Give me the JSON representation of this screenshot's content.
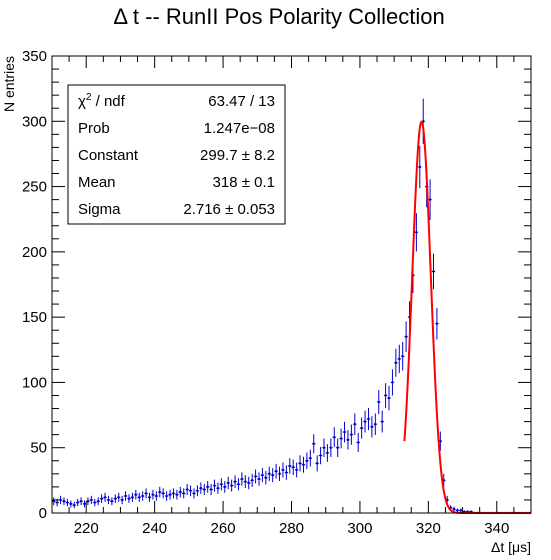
{
  "chart_data": {
    "type": "scatter",
    "title": "Δ t -- RunII Pos Polarity Collection",
    "xlabel": "Δt [μs]",
    "ylabel": "N entries",
    "xlim": [
      210,
      350
    ],
    "ylim": [
      0,
      350
    ],
    "x_ticks": [
      220,
      240,
      260,
      280,
      300,
      320,
      340
    ],
    "y_ticks": [
      0,
      50,
      100,
      150,
      200,
      250,
      300,
      350
    ],
    "grid": false,
    "marker_color": "#0000cc",
    "fit_color": "#ff0000",
    "bin_width": 1,
    "series": [
      {
        "type": "scatter",
        "x": [
          210.5,
          211.5,
          212.5,
          213.5,
          214.5,
          215.5,
          216.5,
          217.5,
          218.5,
          219.5,
          220.5,
          221.5,
          222.5,
          223.5,
          224.5,
          225.5,
          226.5,
          227.5,
          228.5,
          229.5,
          230.5,
          231.5,
          232.5,
          233.5,
          234.5,
          235.5,
          236.5,
          237.5,
          238.5,
          239.5,
          240.5,
          241.5,
          242.5,
          243.5,
          244.5,
          245.5,
          246.5,
          247.5,
          248.5,
          249.5,
          250.5,
          251.5,
          252.5,
          253.5,
          254.5,
          255.5,
          256.5,
          257.5,
          258.5,
          259.5,
          260.5,
          261.5,
          262.5,
          263.5,
          264.5,
          265.5,
          266.5,
          267.5,
          268.5,
          269.5,
          270.5,
          271.5,
          272.5,
          273.5,
          274.5,
          275.5,
          276.5,
          277.5,
          278.5,
          279.5,
          280.5,
          281.5,
          282.5,
          283.5,
          284.5,
          285.5,
          286.5,
          287.5,
          288.5,
          289.5,
          290.5,
          291.5,
          292.5,
          293.5,
          294.5,
          295.5,
          296.5,
          297.5,
          298.5,
          299.5,
          300.5,
          301.5,
          302.5,
          303.5,
          304.5,
          305.5,
          306.5,
          307.5,
          308.5,
          309.5,
          310.5,
          311.5,
          312.5,
          313.5,
          314.5,
          315.5,
          316.5,
          317.5,
          318.5,
          319.5,
          320.5,
          321.5,
          322.5,
          323.5,
          324.5,
          325.5,
          326.5,
          327.5,
          328.5,
          329.5,
          330.5,
          331.5,
          332.5,
          333.5,
          334.5,
          335.5,
          336.5,
          337.5,
          338.5,
          339.5,
          340.5,
          341.5,
          342.5,
          343.5,
          344.5,
          345.5,
          346.5,
          347.5,
          348.5,
          349.5
        ],
        "y": [
          9,
          8,
          10,
          9,
          8,
          7,
          6,
          8,
          9,
          7,
          9,
          10,
          8,
          9,
          11,
          12,
          10,
          9,
          11,
          12,
          10,
          13,
          11,
          12,
          14,
          12,
          13,
          15,
          12,
          14,
          13,
          16,
          15,
          13,
          14,
          15,
          14,
          16,
          15,
          18,
          17,
          15,
          17,
          19,
          18,
          20,
          18,
          21,
          19,
          22,
          20,
          23,
          21,
          24,
          22,
          26,
          24,
          23,
          25,
          28,
          26,
          29,
          27,
          30,
          29,
          32,
          30,
          33,
          31,
          36,
          35,
          33,
          38,
          37,
          40,
          42,
          53,
          38,
          44,
          50,
          46,
          50,
          58,
          50,
          57,
          62,
          56,
          60,
          68,
          54,
          65,
          70,
          72,
          66,
          68,
          85,
          70,
          90,
          88,
          100,
          115,
          118,
          120,
          135,
          150,
          182,
          215,
          265,
          300,
          250,
          240,
          185,
          145,
          55,
          25,
          10,
          4,
          3,
          2,
          2,
          1,
          1,
          1,
          0,
          0,
          0,
          0,
          0,
          0,
          0,
          0,
          0,
          0,
          0,
          0,
          0,
          0,
          0,
          0,
          0
        ]
      },
      {
        "name": "Gaussian fit",
        "type": "line",
        "x_range": [
          313.0,
          350.0
        ],
        "constant": 299.7,
        "mean": 318,
        "sigma": 2.716
      }
    ]
  },
  "stats_box": {
    "rows": [
      {
        "label": "χ² / ndf",
        "value": "63.47 / 13"
      },
      {
        "label": "Prob",
        "value": "1.247e−08"
      },
      {
        "label": "Constant",
        "value": "299.7 ± 8.2"
      },
      {
        "label": "Mean",
        "value": "318 ± 0.1"
      },
      {
        "label": "Sigma",
        "value": "2.716 ± 0.053"
      }
    ]
  }
}
